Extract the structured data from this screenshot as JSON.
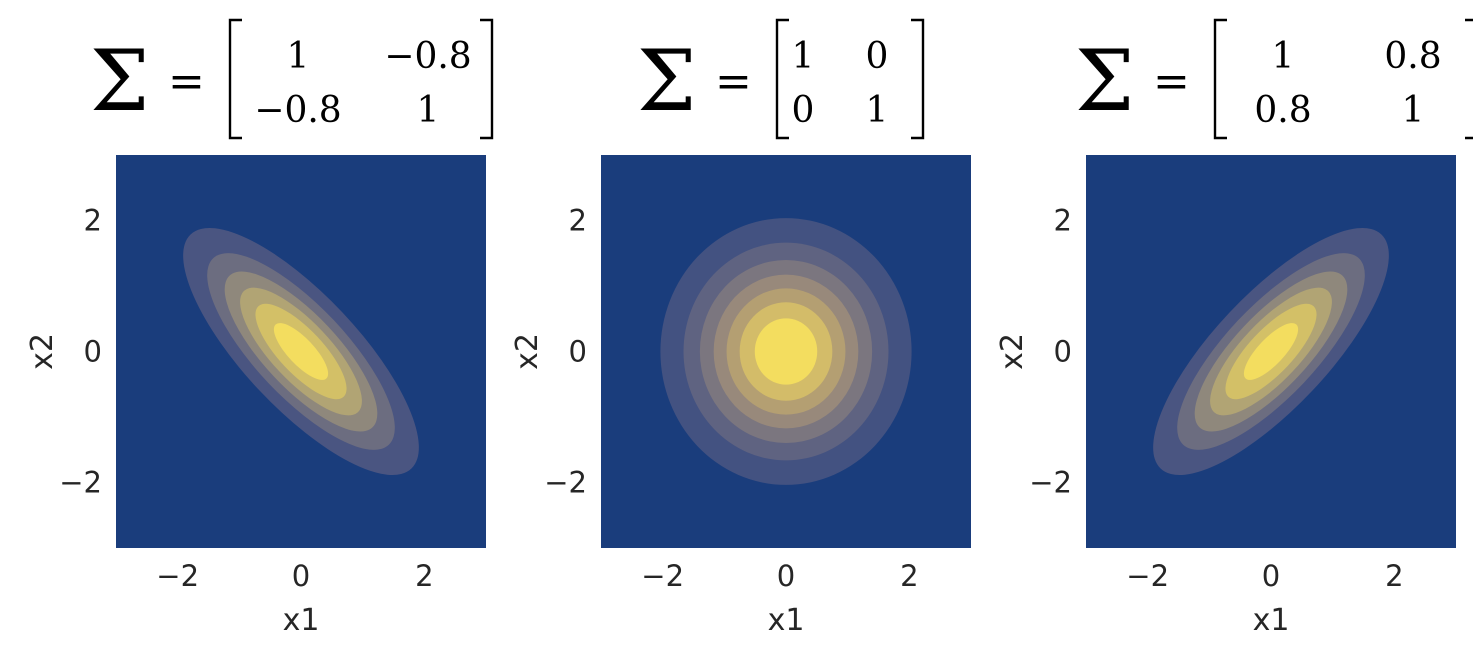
{
  "chart_data": [
    {
      "type": "contour",
      "title": {
        "symbol": "Σ",
        "equals": "=",
        "matrix": [
          [
            "1",
            "−0.8"
          ],
          [
            "−0.8",
            "1"
          ]
        ]
      },
      "covariance": [
        [
          1,
          -0.8
        ],
        [
          -0.8,
          1
        ]
      ],
      "mean": [
        0,
        0
      ],
      "xlabel": "x1",
      "ylabel": "x2",
      "xlim": [
        -3,
        3
      ],
      "ylim": [
        -3,
        3
      ],
      "xticks": [
        {
          "value": -2,
          "label": "−2"
        },
        {
          "value": 0,
          "label": "0"
        },
        {
          "value": 2,
          "label": "2"
        }
      ],
      "yticks": [
        {
          "value": -2,
          "label": "−2"
        },
        {
          "value": 0,
          "label": "0"
        },
        {
          "value": 2,
          "label": "2"
        }
      ],
      "levels": [
        0.04,
        0.08,
        0.12,
        0.16,
        0.2,
        0.24
      ],
      "colors": [
        "#1a3d7c",
        "#4a5581",
        "#6c6d80",
        "#8f887c",
        "#b1a474",
        "#d3c067",
        "#f3dd5f"
      ],
      "grid": false
    },
    {
      "type": "contour",
      "title": {
        "symbol": "Σ",
        "equals": "=",
        "matrix": [
          [
            "1",
            "0"
          ],
          [
            "0",
            "1"
          ]
        ]
      },
      "covariance": [
        [
          1,
          0
        ],
        [
          0,
          1
        ]
      ],
      "mean": [
        0,
        0
      ],
      "xlabel": "x1",
      "ylabel": "x2",
      "xlim": [
        -3,
        3
      ],
      "ylim": [
        -3,
        3
      ],
      "xticks": [
        {
          "value": -2,
          "label": "−2"
        },
        {
          "value": 0,
          "label": "0"
        },
        {
          "value": 2,
          "label": "2"
        }
      ],
      "yticks": [
        {
          "value": -2,
          "label": "−2"
        },
        {
          "value": 0,
          "label": "0"
        },
        {
          "value": 2,
          "label": "2"
        }
      ],
      "levels": [
        0.02,
        0.04,
        0.06,
        0.08,
        0.1,
        0.12,
        0.14
      ],
      "colors": [
        "#1a3d7c",
        "#435281",
        "#5f6381",
        "#7b767f",
        "#98897b",
        "#b49f72",
        "#d3bc69",
        "#f3dd5f"
      ],
      "grid": false
    },
    {
      "type": "contour",
      "title": {
        "symbol": "Σ",
        "equals": "=",
        "matrix": [
          [
            "1",
            "0.8"
          ],
          [
            "0.8",
            "1"
          ]
        ]
      },
      "covariance": [
        [
          1,
          0.8
        ],
        [
          0.8,
          1
        ]
      ],
      "mean": [
        0,
        0
      ],
      "xlabel": "x1",
      "ylabel": "x2",
      "xlim": [
        -3,
        3
      ],
      "ylim": [
        -3,
        3
      ],
      "xticks": [
        {
          "value": -2,
          "label": "−2"
        },
        {
          "value": 0,
          "label": "0"
        },
        {
          "value": 2,
          "label": "2"
        }
      ],
      "yticks": [
        {
          "value": -2,
          "label": "−2"
        },
        {
          "value": 0,
          "label": "0"
        },
        {
          "value": 2,
          "label": "2"
        }
      ],
      "levels": [
        0.04,
        0.08,
        0.12,
        0.16,
        0.2,
        0.24
      ],
      "colors": [
        "#1a3d7c",
        "#4a5581",
        "#6c6d80",
        "#8f887c",
        "#b1a474",
        "#d3c067",
        "#f3dd5f"
      ],
      "grid": false
    }
  ]
}
